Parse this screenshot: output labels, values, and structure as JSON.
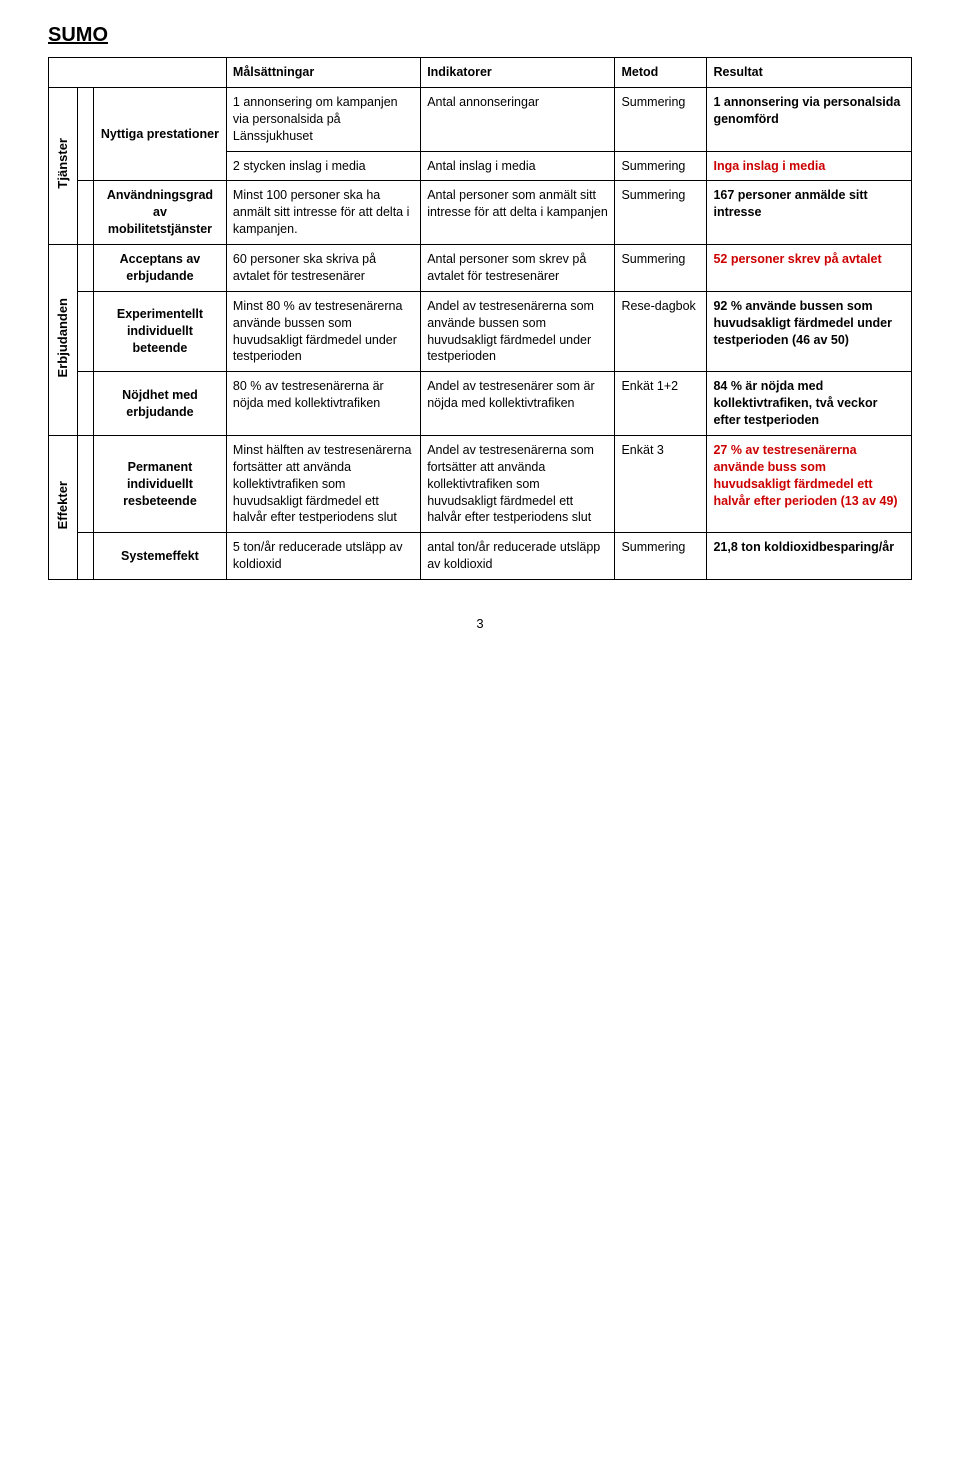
{
  "title": "SUMO",
  "pageNumber": "3",
  "headers": {
    "goals": "Målsättningar",
    "indicators": "Indikatorer",
    "method": "Metod",
    "result": "Resultat"
  },
  "sideLabels": {
    "services": "Tjänster",
    "offers": "Erbjudanden",
    "effects": "Effekter"
  },
  "rows": {
    "nyttiga": {
      "label": "Nyttiga prestationer",
      "r1": {
        "goal": "1 annonsering om kampanjen via personalsida på Länssjukhuset",
        "indicator": "Antal annonseringar",
        "method": "Summering",
        "result": "1 annonsering via personalsida genomförd"
      },
      "r2": {
        "goal": "2 stycken inslag i media",
        "indicator": "Antal inslag i media",
        "method": "Summering",
        "result": "Inga inslag i media"
      }
    },
    "anvandning": {
      "label": "Användningsgrad av mobilitetstjänster",
      "goal": "Minst 100 personer ska ha anmält sitt intresse för att delta i kampanjen.",
      "indicator": "Antal personer som anmält sitt intresse för att delta i kampanjen",
      "method": "Summering",
      "result": "167 personer anmälde sitt intresse"
    },
    "acceptans": {
      "label": "Acceptans av erbjudande",
      "goal": "60 personer ska skriva på avtalet för testresenärer",
      "indicator": "Antal personer som skrev på avtalet för testresenärer",
      "method": "Summering",
      "result": "52 personer skrev på avtalet"
    },
    "experiment": {
      "label": "Experimentellt individuellt beteende",
      "goal": "Minst 80 % av testresenärerna använde bussen som huvudsakligt färdmedel under testperioden",
      "indicator": "Andel av testresenärerna som använde bussen som huvudsakligt färdmedel under testperioden",
      "method": "Rese-dagbok",
      "result": "92 % använde bussen som huvudsakligt färdmedel under testperioden (46 av 50)"
    },
    "nojdhet": {
      "label": "Nöjdhet med erbjudande",
      "goal": "80 % av testresenärerna är nöjda med kollektivtrafiken",
      "indicator": "Andel av testresenärer som är nöjda med kollektivtrafiken",
      "method": "Enkät 1+2",
      "result": "84 % är nöjda med kollektivtrafiken, två veckor efter testperioden"
    },
    "permanent": {
      "label": "Permanent individuellt resbeteende",
      "goal": "Minst hälften av testresenärerna fortsätter att använda kollektivtrafiken som huvudsakligt färdmedel ett halvår efter testperiodens slut",
      "indicator": "Andel av testresenärerna som fortsätter att använda kollektivtrafiken som huvudsakligt färdmedel ett halvår efter testperiodens slut",
      "method": "Enkät 3",
      "result": "27 % av testresenärerna använde buss som huvudsakligt färdmedel ett halvår efter perioden (13 av 49)"
    },
    "system": {
      "label": "Systemeffekt",
      "goal": "5 ton/år reducerade utsläpp av koldioxid",
      "indicator": "antal ton/år reducerade utsläpp av koldioxid",
      "method": "Summering",
      "result": "21,8 ton koldioxidbesparing/år"
    }
  }
}
